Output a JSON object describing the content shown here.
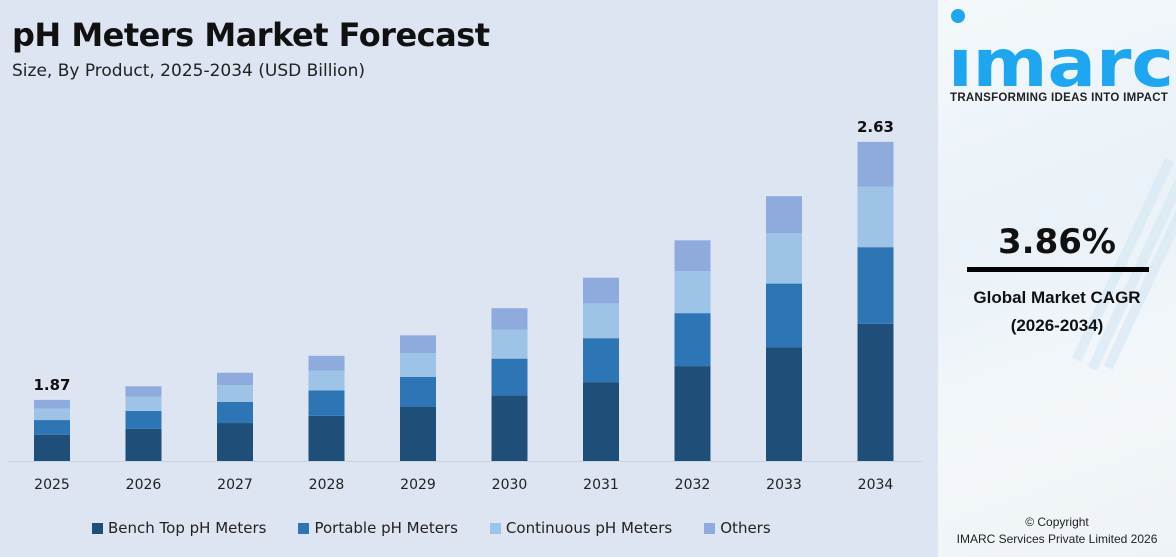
{
  "title": "pH Meters Market Forecast",
  "subtitle": "Size, By Product, 2025-2034 (USD Billion)",
  "chart_data": {
    "type": "bar",
    "stacked": true,
    "categories": [
      "2025",
      "2026",
      "2027",
      "2028",
      "2029",
      "2030",
      "2031",
      "2032",
      "2033",
      "2034"
    ],
    "totals": [
      1.87,
      1.91,
      1.95,
      2.0,
      2.06,
      2.14,
      2.23,
      2.34,
      2.47,
      2.63
    ],
    "data_labels": {
      "2025": "1.87",
      "2034": "2.63"
    },
    "series": [
      {
        "name": "Bench Top pH Meters",
        "color": "#1f4e79",
        "share": 0.43
      },
      {
        "name": "Portable pH Meters",
        "color": "#2e75b6",
        "share": 0.24
      },
      {
        "name": "Continuous pH Meters",
        "color": "#9dc3e6",
        "share": 0.19
      },
      {
        "name": "Others",
        "color": "#8faadc",
        "share": 0.14
      }
    ],
    "ylim": [
      1.69,
      2.7
    ],
    "grid": false,
    "legend": "bottom"
  },
  "brand": {
    "name": "imarc",
    "tagline": "TRANSFORMING IDEAS INTO IMPACT",
    "color": "#1ea7f0"
  },
  "cagr": {
    "value": "3.86%",
    "label": "Global Market CAGR",
    "period": "(2026-2034)"
  },
  "copyright": {
    "line1": "© Copyright",
    "line2": "IMARC Services Private Limited 2026"
  }
}
